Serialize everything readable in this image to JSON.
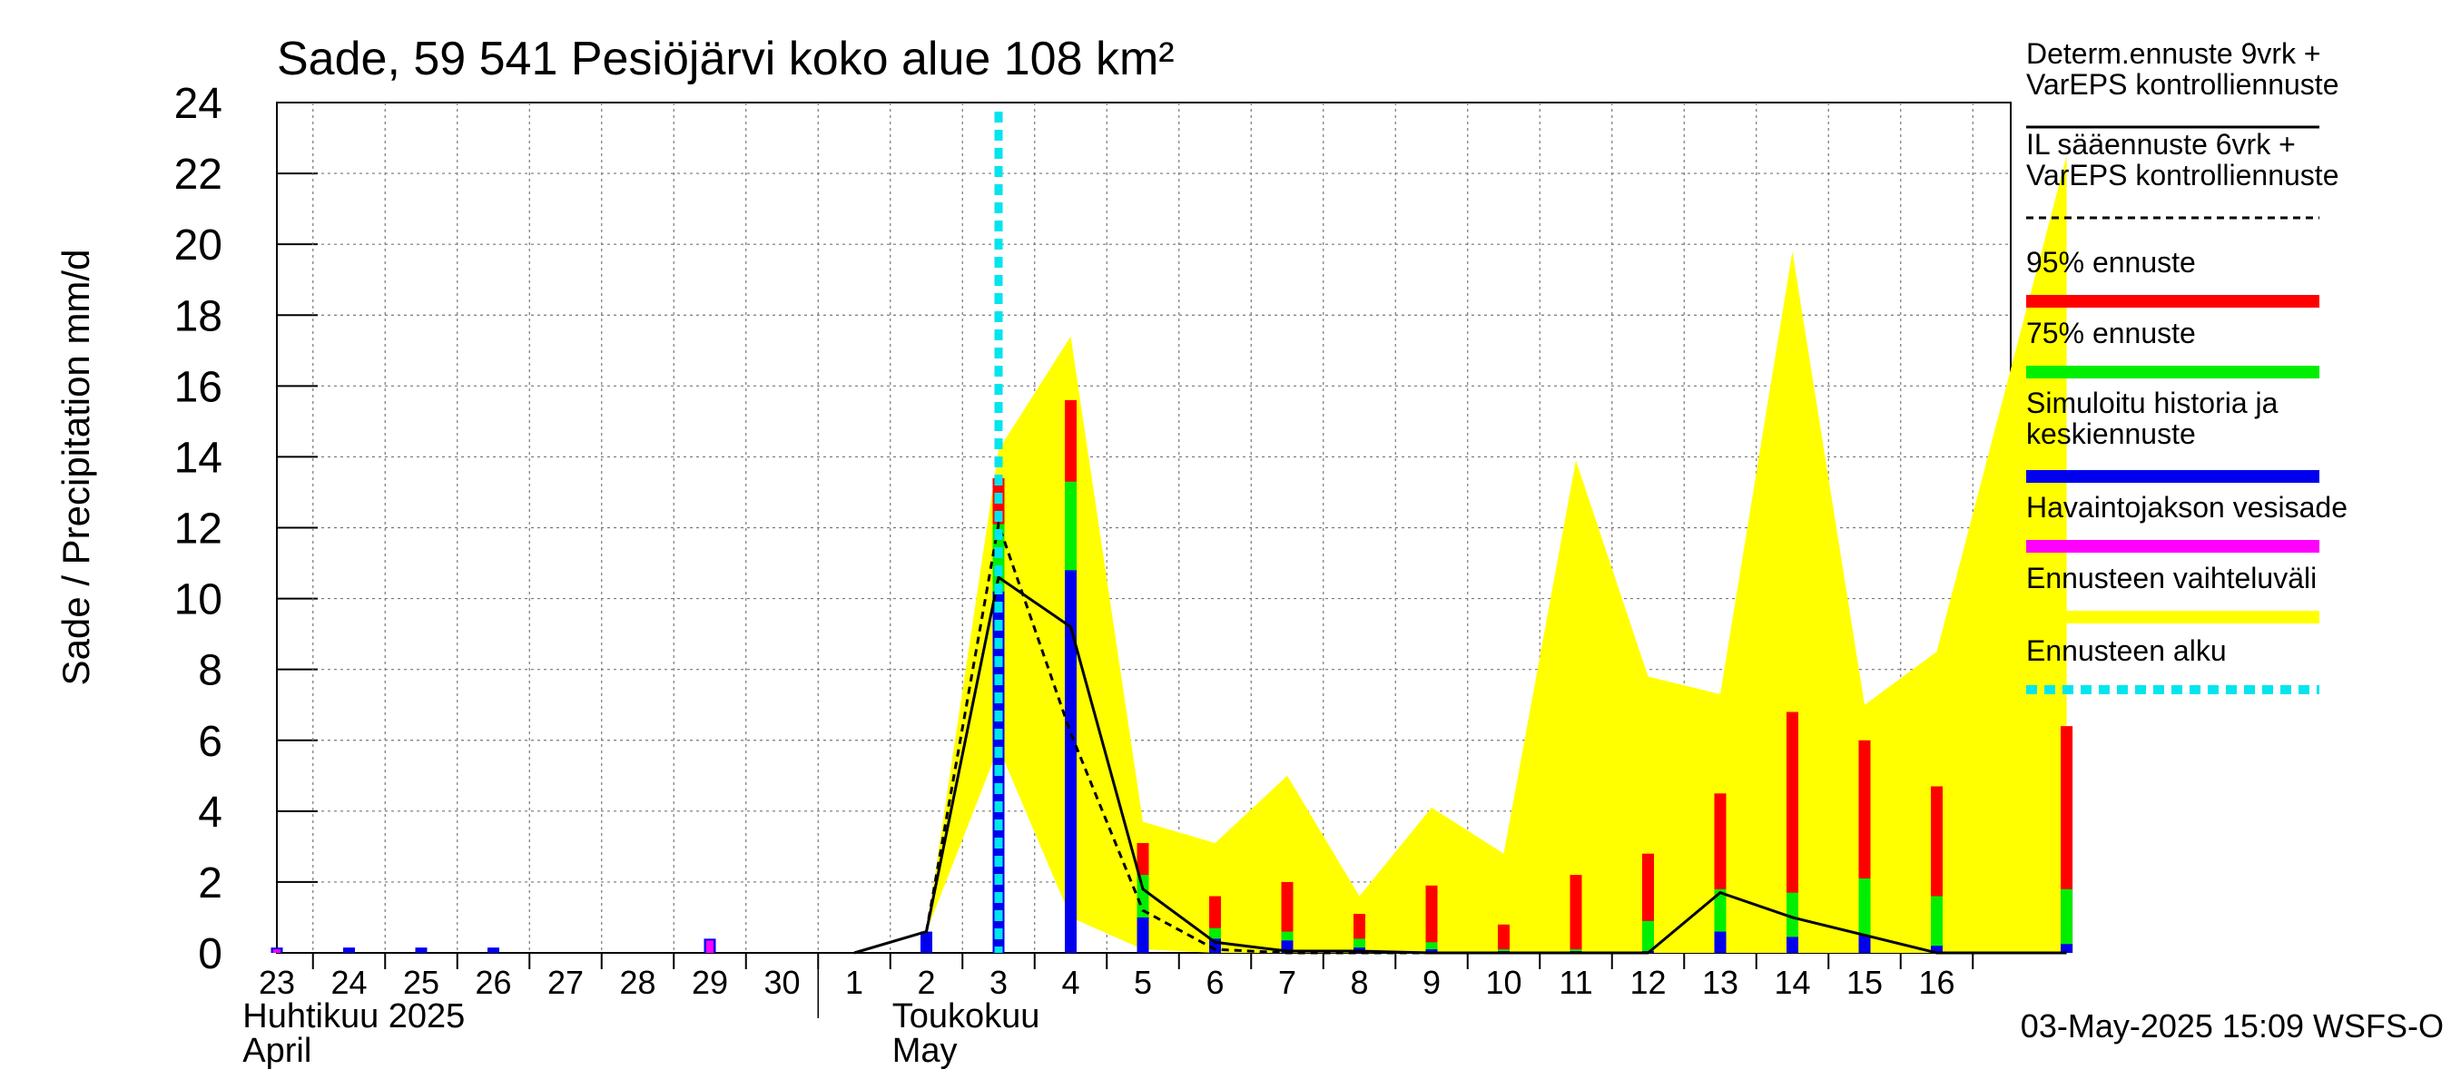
{
  "chart_data": {
    "type": "bar",
    "title": "Sade, 59 541 Pesiöjärvi koko alue 108 km²",
    "ylabel": "Sade / Precipitation   mm/d",
    "ylim": [
      0,
      24
    ],
    "yticks": [
      0,
      2,
      4,
      6,
      8,
      10,
      12,
      14,
      16,
      18,
      20,
      22,
      24
    ],
    "xlim": [
      0,
      24.8
    ],
    "x_days": [
      {
        "label": "23",
        "x": 0
      },
      {
        "label": "24",
        "x": 1
      },
      {
        "label": "25",
        "x": 2
      },
      {
        "label": "26",
        "x": 3
      },
      {
        "label": "27",
        "x": 4
      },
      {
        "label": "28",
        "x": 5
      },
      {
        "label": "29",
        "x": 6
      },
      {
        "label": "30",
        "x": 7
      },
      {
        "label": "1",
        "x": 8
      },
      {
        "label": "2",
        "x": 9
      },
      {
        "label": "3",
        "x": 10
      },
      {
        "label": "4",
        "x": 11
      },
      {
        "label": "5",
        "x": 12
      },
      {
        "label": "6",
        "x": 13
      },
      {
        "label": "7",
        "x": 14
      },
      {
        "label": "8",
        "x": 15
      },
      {
        "label": "9",
        "x": 16
      },
      {
        "label": "10",
        "x": 17
      },
      {
        "label": "11",
        "x": 18
      },
      {
        "label": "12",
        "x": 19
      },
      {
        "label": "13",
        "x": 20
      },
      {
        "label": "14",
        "x": 21
      },
      {
        "label": "15",
        "x": 22
      },
      {
        "label": "16",
        "x": 23
      }
    ],
    "month_labels": [
      {
        "line1": "Huhtikuu  2025",
        "line2": "April",
        "x": 0
      },
      {
        "line1": "Toukokuu",
        "line2": "May",
        "x": 9
      }
    ],
    "month_separator_x": 8,
    "forecast_start_x": 10,
    "range_band": {
      "x": [
        9,
        10,
        11,
        12,
        13,
        14,
        15,
        16,
        17,
        18,
        19,
        20,
        21,
        22,
        23,
        24.8
      ],
      "upper": [
        0.6,
        14.2,
        17.4,
        3.7,
        3.1,
        5.0,
        1.6,
        4.1,
        2.8,
        13.9,
        7.8,
        7.3,
        19.8,
        7.0,
        8.5,
        22.5
      ],
      "lower": [
        0.6,
        5.8,
        1.0,
        0.1,
        0,
        0,
        0,
        0,
        0,
        0,
        0,
        0,
        0,
        0,
        0,
        0
      ]
    },
    "forecast_bars": {
      "x": [
        10,
        11,
        12,
        13,
        14,
        15,
        16,
        17,
        18,
        19,
        20,
        21,
        22,
        23,
        24.8
      ],
      "p95": [
        13.4,
        15.6,
        3.1,
        1.6,
        2.0,
        1.1,
        1.9,
        0.8,
        2.2,
        2.8,
        4.5,
        6.8,
        6.0,
        4.7,
        6.4
      ],
      "p75": [
        12.1,
        13.3,
        2.2,
        0.7,
        0.6,
        0.4,
        0.3,
        0.1,
        0.1,
        0.9,
        1.8,
        1.7,
        2.1,
        1.6,
        1.8
      ],
      "median": [
        10.2,
        10.8,
        1.0,
        0.4,
        0.35,
        0.15,
        0.1,
        0.05,
        0.05,
        0.05,
        0.6,
        0.45,
        0.5,
        0.2,
        0.25
      ]
    },
    "history_bars": {
      "x": [
        0,
        1,
        2,
        3,
        6,
        9
      ],
      "values": [
        0.15,
        0.15,
        0.15,
        0.15,
        0.4,
        0.6
      ]
    },
    "observed_bars": {
      "x": [
        0,
        6
      ],
      "values": [
        0.1,
        0.35
      ]
    },
    "determ_line": {
      "x": [
        8,
        9,
        10,
        11,
        12,
        13,
        14,
        15,
        16,
        17,
        18,
        19,
        20,
        21,
        22,
        23,
        24,
        24.8
      ],
      "y": [
        0,
        0.6,
        10.6,
        9.2,
        1.8,
        0.3,
        0.05,
        0.05,
        0,
        0,
        0,
        0,
        1.7,
        1.0,
        0.5,
        0,
        0,
        0
      ]
    },
    "il_line": {
      "x": [
        9,
        10,
        11,
        12,
        13,
        14,
        15,
        16
      ],
      "y": [
        0.6,
        12.1,
        6.2,
        1.2,
        0.1,
        0,
        0,
        0
      ]
    },
    "legend": [
      {
        "label": "Determ.ennuste 9vrk +",
        "label2": "VarEPS kontrolliennuste",
        "style": "solid",
        "color": "#000000"
      },
      {
        "label": "IL sääennuste 6vrk  +",
        "label2": "  VarEPS kontrolliennuste",
        "style": "dashed",
        "color": "#000000"
      },
      {
        "label": "95% ennuste",
        "label2": "",
        "style": "bar",
        "color": "#ff0000"
      },
      {
        "label": "75% ennuste",
        "label2": "",
        "style": "bar",
        "color": "#00ee00"
      },
      {
        "label": "Simuloitu historia ja",
        "label2": "keskiennuste",
        "style": "bar",
        "color": "#0000ee"
      },
      {
        "label": "Havaintojakson vesisade",
        "label2": "",
        "style": "bar",
        "color": "#ff00ff"
      },
      {
        "label": "Ennusteen vaihteluväli",
        "label2": "",
        "style": "bar",
        "color": "#ffff00"
      },
      {
        "label": "Ennusteen alku",
        "label2": "",
        "style": "dotted",
        "color": "#00e5ee"
      }
    ],
    "timestamp": "03-May-2025 15:09 WSFS-O"
  },
  "colors": {
    "p95": "#ff0000",
    "p75": "#00ee00",
    "median": "#0000ee",
    "observed": "#ff00ff",
    "band": "#ffff00",
    "forecast_start": "#00e5ee"
  }
}
